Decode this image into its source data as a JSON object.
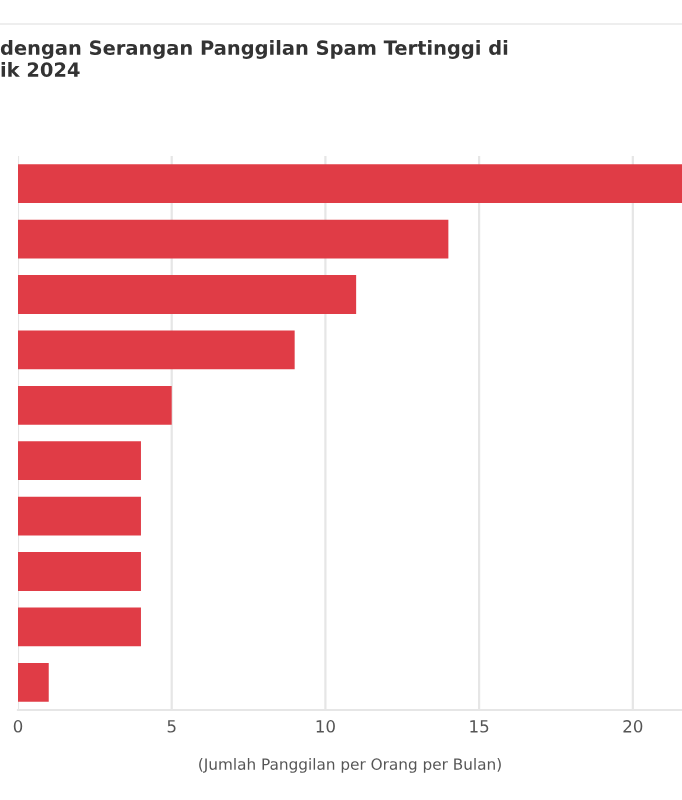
{
  "chart_data": {
    "type": "bar",
    "orientation": "horizontal",
    "title": "dengan Serangan Panggilan Spam Tertinggi di\nik 2024",
    "xlabel": "(Jumlah Panggilan per Orang per Bulan)",
    "categories": [
      null,
      null,
      null,
      null,
      null,
      null,
      null,
      null,
      null,
      null
    ],
    "values": [
      21.6,
      14,
      11,
      9,
      5,
      4,
      4,
      4,
      4,
      1
    ],
    "color": "#e03c46",
    "xlim": [
      0,
      21.6
    ],
    "xticks": [
      0,
      5,
      10,
      15,
      20
    ],
    "grid": "x"
  }
}
